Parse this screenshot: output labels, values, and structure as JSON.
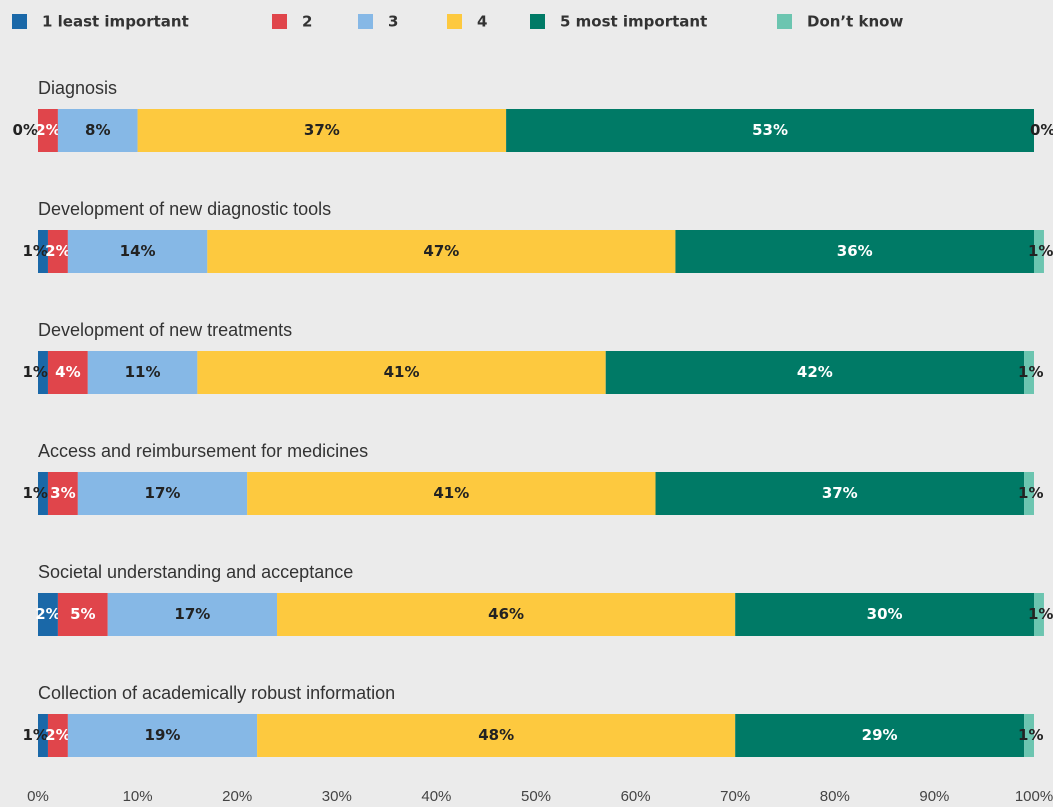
{
  "chart_data": {
    "type": "stacked-bar-horizontal",
    "categories": [
      "Diagnosis",
      "Development of new diagnostic tools",
      "Development of new treatments",
      "Access and reimbursement for medicines",
      "Societal understanding and acceptance",
      "Collection of academically robust information"
    ],
    "series": [
      {
        "name": "1 least important",
        "color": "#1a68a8",
        "values": [
          0,
          1,
          1,
          1,
          2,
          1
        ],
        "value_labels": [
          "0%",
          "1%",
          "1%",
          "1%",
          "2%",
          "1%"
        ]
      },
      {
        "name": "2",
        "color": "#e0454b",
        "values": [
          2,
          2,
          4,
          3,
          5,
          2
        ],
        "value_labels": [
          "2%",
          "2%",
          "4%",
          "3%",
          "5%",
          "2%"
        ]
      },
      {
        "name": "3",
        "color": "#86b8e6",
        "values": [
          8,
          14,
          11,
          17,
          17,
          19
        ],
        "value_labels": [
          "8%",
          "14%",
          "11%",
          "17%",
          "17%",
          "19%"
        ]
      },
      {
        "name": "4",
        "color": "#fdc93f",
        "values": [
          37,
          47,
          41,
          41,
          46,
          48
        ],
        "value_labels": [
          "37%",
          "47%",
          "41%",
          "41%",
          "46%",
          "48%"
        ]
      },
      {
        "name": "5 most important",
        "color": "#007a66",
        "values": [
          53,
          36,
          42,
          37,
          30,
          29
        ],
        "value_labels": [
          "53%",
          "36%",
          "42%",
          "37%",
          "30%",
          "29%"
        ]
      },
      {
        "name": "Don’t know",
        "color": "#6cc5b0",
        "values": [
          0,
          1,
          1,
          1,
          1,
          1
        ],
        "value_labels": [
          "0%",
          "1%",
          "1%",
          "1%",
          "1%",
          "1%"
        ]
      }
    ],
    "xlim": [
      0,
      100
    ],
    "xticks": [
      {
        "value": 0,
        "label": "0%"
      },
      {
        "value": 10,
        "label": "10%"
      },
      {
        "value": 20,
        "label": "20%"
      },
      {
        "value": 30,
        "label": "30%"
      },
      {
        "value": 40,
        "label": "40%"
      },
      {
        "value": 50,
        "label": "50%"
      },
      {
        "value": 60,
        "label": "60%"
      },
      {
        "value": 70,
        "label": "70%"
      },
      {
        "value": 80,
        "label": "80%"
      },
      {
        "value": 90,
        "label": "90%"
      },
      {
        "value": 100,
        "label": "100%"
      }
    ],
    "legend": "top"
  }
}
